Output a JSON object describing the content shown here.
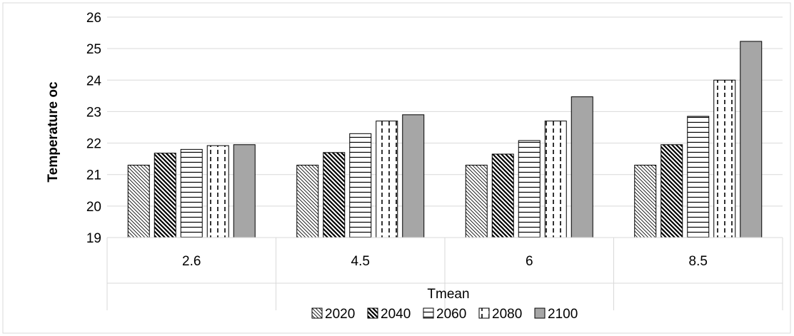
{
  "chart_data": {
    "type": "bar",
    "categories": [
      "2.6",
      "4.5",
      "6",
      "8.5"
    ],
    "category_group_label": "Tmean",
    "series": [
      {
        "name": "2020",
        "values": [
          21.3,
          21.3,
          21.3,
          21.3
        ]
      },
      {
        "name": "2040",
        "values": [
          21.68,
          21.7,
          21.65,
          21.95
        ]
      },
      {
        "name": "2060",
        "values": [
          21.8,
          22.3,
          22.08,
          22.85
        ]
      },
      {
        "name": "2080",
        "values": [
          21.92,
          22.7,
          22.7,
          24.0
        ]
      },
      {
        "name": "2100",
        "values": [
          21.95,
          22.9,
          23.47,
          25.23
        ]
      }
    ],
    "ylabel": "Temperature oc",
    "ylim": [
      19,
      26
    ],
    "yticks": [
      "19",
      "20",
      "21",
      "22",
      "23",
      "24",
      "25",
      "26"
    ],
    "grid": true,
    "legend_position": "bottom",
    "series_patterns": [
      "fine-diagonal",
      "bold-diagonal",
      "horizontal-lines",
      "dashed-vertical",
      "solid-gray"
    ],
    "colors": {
      "bar_outline": "#000000",
      "grid": "#d9d9d9",
      "solid_fill": "#a6a6a6"
    }
  }
}
